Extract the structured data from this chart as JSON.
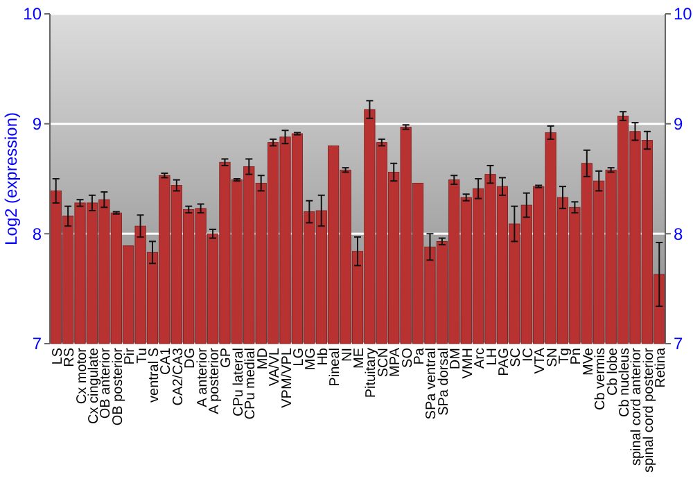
{
  "chart_data": {
    "type": "bar",
    "ylabel": "Log2 (expression)",
    "categories": [
      "LS",
      "RS",
      "Cx motor",
      "Cx cingulate",
      "OB anterior",
      "OB posterior",
      "Pir",
      "Tu",
      "ventral S",
      "CA1",
      "CA2/CA3",
      "DG",
      "A anterior",
      "A posterior",
      "GP",
      "CPu lateral",
      "CPu medial",
      "MD",
      "VA/VL",
      "VPM/VPL",
      "LG",
      "MG",
      "Hb",
      "Pineal",
      "NI",
      "ME",
      "Pituitary",
      "SCN",
      "MPA",
      "SO",
      "Pa",
      "SPa ventral",
      "SPa dorsal",
      "DM",
      "VMH",
      "Arc",
      "LH",
      "PAG",
      "SC",
      "IC",
      "VTA",
      "SN",
      "Tg",
      "Pn",
      "MVe",
      "Cb vermis",
      "Cb lobe",
      "Cb nucleus",
      "spinal cord anterior",
      "spinal cord posterior",
      "Retina"
    ],
    "values": [
      8.39,
      8.16,
      8.28,
      8.28,
      8.31,
      8.19,
      7.89,
      8.07,
      7.83,
      8.53,
      8.44,
      8.22,
      8.23,
      8.0,
      8.65,
      8.49,
      8.61,
      8.46,
      8.83,
      8.88,
      8.91,
      8.2,
      8.21,
      8.8,
      8.58,
      7.84,
      9.13,
      8.83,
      8.56,
      8.97,
      8.46,
      7.88,
      7.93,
      8.49,
      8.33,
      8.41,
      8.54,
      8.43,
      8.09,
      8.26,
      8.43,
      8.92,
      8.33,
      8.24,
      8.64,
      8.48,
      8.58,
      9.07,
      8.93,
      8.85,
      7.63
    ],
    "errors": [
      0.11,
      0.09,
      0.03,
      0.07,
      0.07,
      0.01,
      null,
      0.1,
      0.1,
      0.02,
      0.05,
      0.03,
      0.04,
      0.04,
      0.03,
      0.01,
      0.07,
      0.07,
      0.03,
      0.06,
      0.01,
      0.1,
      0.14,
      null,
      0.02,
      0.13,
      0.08,
      0.03,
      0.08,
      0.02,
      null,
      0.12,
      0.03,
      0.04,
      0.03,
      0.09,
      0.08,
      0.08,
      0.16,
      0.11,
      0.01,
      0.06,
      0.1,
      0.05,
      0.12,
      0.09,
      0.02,
      0.04,
      0.08,
      0.08,
      0.29
    ],
    "color": "#b83232",
    "ylim": [
      7,
      10
    ],
    "yticks": [
      7,
      8,
      9,
      10
    ],
    "y2lim": [
      7,
      10
    ],
    "y2ticks": [
      7,
      8,
      9,
      10
    ],
    "grid": "y"
  }
}
